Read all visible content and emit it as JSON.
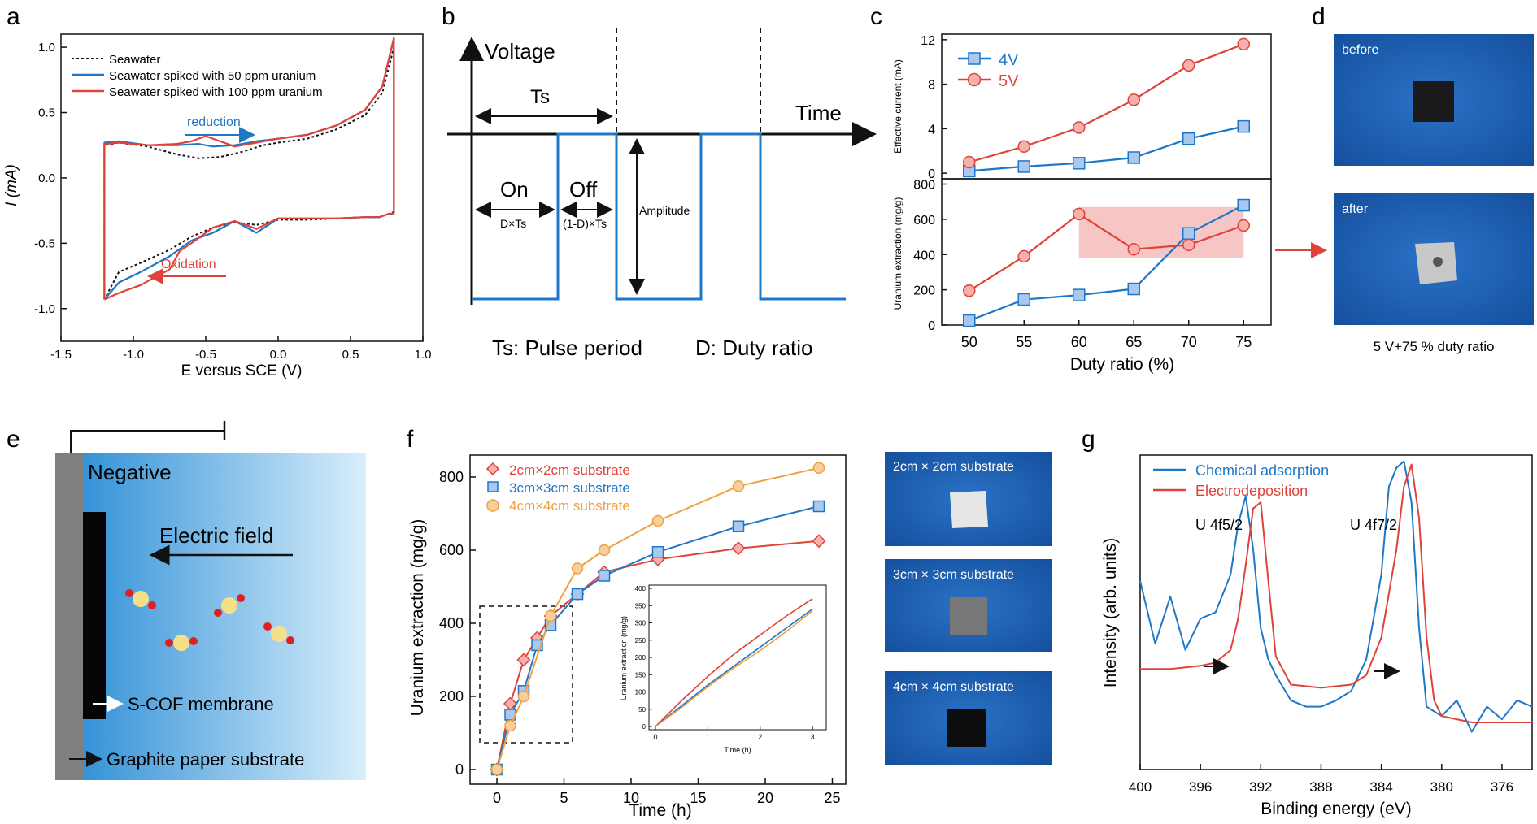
{
  "panel_letters": {
    "a": "a",
    "b": "b",
    "c": "c",
    "d": "d",
    "e": "e",
    "f": "f",
    "g": "g"
  },
  "colors": {
    "blue": "#1f77c8",
    "red": "#e0423a",
    "orange": "#f0a040",
    "pink": "#f3b3b0",
    "photo_blue": "#1f5fb0",
    "black": "#111111"
  },
  "panel_a": {
    "xlabel": "E versus SCE (V)",
    "ylabel": "I (mA)",
    "xticks": [
      "-1.5",
      "-1.0",
      "-0.5",
      "0.0",
      "0.5",
      "1.0"
    ],
    "yticks": [
      "1.0",
      "0.5",
      "0.0",
      "-0.5",
      "-1.0"
    ],
    "legend": [
      "Seawater",
      "Seawater spiked with 50 ppm uranium",
      "Seawater spiked with 100 ppm uranium"
    ],
    "annot_reduction": "reduction",
    "annot_oxidation": "Oxidation"
  },
  "panel_b": {
    "voltage": "Voltage",
    "time": "Time",
    "ts": "Ts",
    "on": "On",
    "off": "Off",
    "dts": "D×Ts",
    "one_minus_dts": "(1-D)×Ts",
    "amplitude": "Amplitude",
    "ts_caption": "Ts: Pulse period",
    "d_caption": "D: Duty ratio"
  },
  "panel_c": {
    "xlabel": "Duty ratio (%)",
    "top_ylabel": "Effective current (mA)",
    "bottom_ylabel": "Uranium extraction (mg/g)",
    "xticks": [
      "50",
      "55",
      "60",
      "65",
      "70",
      "75"
    ],
    "top_yticks": [
      "0",
      "4",
      "8",
      "12"
    ],
    "bottom_yticks": [
      "0",
      "200",
      "400",
      "600",
      "800"
    ],
    "legend": [
      "4V",
      "5V"
    ]
  },
  "panel_d": {
    "before": "before",
    "after": "after",
    "caption": "5 V+75 % duty ratio"
  },
  "panel_e": {
    "negative": "Negative",
    "field": "Electric field",
    "membrane": "S-COF membrane",
    "substrate": "Graphite paper substrate"
  },
  "panel_f": {
    "xlabel": "Time (h)",
    "ylabel": "Uranium extraction (mg/g)",
    "xticks": [
      "0",
      "5",
      "10",
      "15",
      "20",
      "25"
    ],
    "yticks": [
      "0",
      "200",
      "400",
      "600",
      "800"
    ],
    "legend": [
      "2cm×2cm substrate",
      "3cm×3cm substrate",
      "4cm×4cm substrate"
    ],
    "inset_xlabel": "Time (h)",
    "inset_ylabel": "Uranium extraction (mg/g)",
    "inset_xticks": [
      "0",
      "1",
      "2",
      "3"
    ],
    "inset_yticks": [
      "0",
      "50",
      "100",
      "150",
      "200",
      "250",
      "300",
      "350",
      "400"
    ],
    "photos": [
      "2cm × 2cm substrate",
      "3cm × 3cm substrate",
      "4cm × 4cm substrate"
    ]
  },
  "panel_g": {
    "xlabel": "Binding energy (eV)",
    "ylabel": "Intensity (arb. units)",
    "xticks": [
      "400",
      "396",
      "392",
      "388",
      "384",
      "380",
      "376"
    ],
    "legend": [
      "Chemical adsorption",
      "Electrodeposition"
    ],
    "peak1": "U 4f5/2",
    "peak2": "U 4f7/2"
  },
  "chart_data": [
    {
      "panel": "a",
      "type": "line",
      "xlabel": "E versus SCE (V)",
      "ylabel": "I (mA)",
      "xlim": [
        -1.5,
        1.0
      ],
      "ylim": [
        -1.25,
        1.1
      ],
      "series": [
        {
          "name": "Seawater",
          "style": "dotted",
          "color": "#111111",
          "x": [
            -1.2,
            -1.2,
            -1.1,
            -0.9,
            -0.7,
            -0.55,
            -0.4,
            -0.25,
            -0.1,
            0.0,
            0.2,
            0.4,
            0.6,
            0.72,
            0.8,
            0.8,
            0.75,
            0.7,
            0.6,
            0.4,
            0.2,
            0.0,
            -0.15,
            -0.3,
            -0.45,
            -0.6,
            -0.75,
            -0.95,
            -1.1,
            -1.2
          ],
          "y": [
            -0.93,
            0.25,
            0.27,
            0.24,
            0.18,
            0.15,
            0.16,
            0.2,
            0.25,
            0.27,
            0.3,
            0.37,
            0.48,
            0.65,
            1.0,
            -0.26,
            -0.28,
            -0.3,
            -0.3,
            -0.31,
            -0.32,
            -0.32,
            -0.36,
            -0.34,
            -0.38,
            -0.45,
            -0.55,
            -0.65,
            -0.72,
            -0.93
          ]
        },
        {
          "name": "Seawater spiked with 50 ppm uranium",
          "color": "#1f77c8",
          "x": [
            -1.2,
            -1.2,
            -1.1,
            -0.9,
            -0.7,
            -0.55,
            -0.45,
            -0.3,
            -0.15,
            0.0,
            0.2,
            0.4,
            0.6,
            0.72,
            0.8,
            0.8,
            0.75,
            0.7,
            0.6,
            0.4,
            0.2,
            0.0,
            -0.15,
            -0.3,
            -0.45,
            -0.6,
            -0.75,
            -0.95,
            -1.1,
            -1.2
          ],
          "y": [
            -0.93,
            0.27,
            0.28,
            0.25,
            0.25,
            0.26,
            0.24,
            0.25,
            0.28,
            0.3,
            0.33,
            0.4,
            0.52,
            0.7,
            1.07,
            -0.27,
            -0.28,
            -0.3,
            -0.3,
            -0.31,
            -0.31,
            -0.31,
            -0.42,
            -0.33,
            -0.42,
            -0.48,
            -0.6,
            -0.72,
            -0.8,
            -0.93
          ]
        },
        {
          "name": "Seawater spiked with 100 ppm uranium",
          "color": "#e0423a",
          "x": [
            -1.2,
            -1.2,
            -1.1,
            -0.9,
            -0.7,
            -0.6,
            -0.5,
            -0.4,
            -0.3,
            -0.15,
            0.0,
            0.2,
            0.4,
            0.6,
            0.72,
            0.8,
            0.8,
            0.75,
            0.7,
            0.6,
            0.4,
            0.2,
            0.0,
            -0.15,
            -0.3,
            -0.45,
            -0.6,
            -0.68,
            -0.75,
            -0.95,
            -1.1,
            -1.2
          ],
          "y": [
            -0.93,
            0.26,
            0.27,
            0.25,
            0.26,
            0.28,
            0.32,
            0.28,
            0.24,
            0.27,
            0.3,
            0.33,
            0.4,
            0.52,
            0.7,
            1.07,
            -0.27,
            -0.28,
            -0.3,
            -0.3,
            -0.31,
            -0.31,
            -0.31,
            -0.39,
            -0.33,
            -0.38,
            -0.5,
            -0.56,
            -0.7,
            -0.82,
            -0.88,
            -0.93
          ]
        }
      ]
    },
    {
      "panel": "c-top",
      "type": "line",
      "xlabel": "Duty ratio (%)",
      "ylabel": "Effective current (mA)",
      "x": [
        50,
        55,
        60,
        65,
        70,
        75
      ],
      "xlim": [
        47.5,
        77.5
      ],
      "ylim": [
        -0.5,
        12.5
      ],
      "series": [
        {
          "name": "4V",
          "color": "#1f77c8",
          "marker": "square",
          "values": [
            0.2,
            0.6,
            0.9,
            1.4,
            3.1,
            4.2
          ]
        },
        {
          "name": "5V",
          "color": "#e0423a",
          "marker": "circle",
          "values": [
            1.0,
            2.4,
            4.1,
            6.6,
            9.7,
            11.6
          ]
        }
      ]
    },
    {
      "panel": "c-bottom",
      "type": "line",
      "xlabel": "Duty ratio (%)",
      "ylabel": "Uranium extraction (mg/g)",
      "x": [
        50,
        55,
        60,
        65,
        70,
        75
      ],
      "xlim": [
        47.5,
        77.5
      ],
      "ylim": [
        0,
        830
      ],
      "series": [
        {
          "name": "4V",
          "color": "#1f77c8",
          "marker": "square",
          "values": [
            25,
            145,
            170,
            205,
            520,
            680
          ]
        },
        {
          "name": "5V",
          "color": "#e0423a",
          "marker": "circle",
          "values": [
            195,
            390,
            630,
            430,
            455,
            565
          ]
        }
      ],
      "highlight": {
        "x": [
          60,
          75
        ],
        "y": [
          380,
          670
        ]
      }
    },
    {
      "panel": "f",
      "type": "line",
      "xlabel": "Time (h)",
      "ylabel": "Uranium extraction (mg/g)",
      "xlim": [
        -2,
        26
      ],
      "ylim": [
        -40,
        860
      ],
      "series": [
        {
          "name": "2cm×2cm substrate",
          "color": "#e0423a",
          "marker": "diamond",
          "x": [
            0,
            1,
            2,
            3,
            4,
            6,
            8,
            12,
            18,
            24
          ],
          "values": [
            0,
            180,
            300,
            360,
            420,
            480,
            540,
            575,
            605,
            625
          ]
        },
        {
          "name": "3cm×3cm substrate",
          "color": "#1f77c8",
          "marker": "square",
          "x": [
            0,
            1,
            2,
            3,
            4,
            6,
            8,
            12,
            18,
            24
          ],
          "values": [
            0,
            150,
            215,
            340,
            395,
            480,
            530,
            595,
            665,
            720
          ]
        },
        {
          "name": "4cm×4cm substrate",
          "color": "#f0a040",
          "marker": "circle",
          "x": [
            0,
            1,
            2,
            4,
            6,
            8,
            12,
            18,
            24
          ],
          "values": [
            0,
            120,
            200,
            420,
            550,
            600,
            680,
            775,
            825
          ]
        }
      ]
    },
    {
      "panel": "f-inset",
      "type": "line",
      "xlabel": "Time (h)",
      "ylabel": "Uranium extraction (mg/g)",
      "xlim": [
        0,
        3.2
      ],
      "ylim": [
        0,
        400
      ],
      "series": [
        {
          "color": "#e0423a",
          "x": [
            0,
            0.5,
            1,
            1.5,
            2,
            2.5,
            3
          ],
          "values": [
            0,
            75,
            145,
            210,
            265,
            320,
            370
          ]
        },
        {
          "color": "#1f77c8",
          "x": [
            0,
            0.5,
            1,
            1.5,
            2,
            2.5,
            3
          ],
          "values": [
            0,
            60,
            120,
            175,
            230,
            285,
            340
          ]
        },
        {
          "color": "#f0a040",
          "x": [
            0,
            0.5,
            1,
            1.5,
            2,
            2.5,
            3
          ],
          "values": [
            0,
            55,
            115,
            170,
            220,
            275,
            335
          ]
        }
      ]
    },
    {
      "panel": "g",
      "type": "line",
      "xlabel": "Binding energy (eV)",
      "ylabel": "Intensity (arb. units)",
      "xlim": [
        400,
        374
      ],
      "ylim": [
        0,
        1
      ],
      "series": [
        {
          "name": "Chemical adsorption",
          "color": "#1f77c8",
          "x": [
            400,
            399,
            398,
            397,
            396,
            395,
            394,
            393.5,
            393,
            392.5,
            392,
            391.5,
            391,
            390,
            389,
            388,
            387,
            386,
            385,
            384,
            383.5,
            383,
            382.5,
            382,
            381.5,
            381,
            380,
            379,
            378,
            377,
            376,
            375,
            374
          ],
          "values": [
            0.6,
            0.4,
            0.55,
            0.38,
            0.48,
            0.5,
            0.62,
            0.78,
            0.87,
            0.7,
            0.45,
            0.35,
            0.3,
            0.22,
            0.2,
            0.2,
            0.22,
            0.25,
            0.35,
            0.62,
            0.9,
            0.96,
            0.98,
            0.85,
            0.45,
            0.2,
            0.17,
            0.22,
            0.12,
            0.2,
            0.16,
            0.22,
            0.2
          ]
        },
        {
          "name": "Electrodeposition",
          "color": "#e0423a",
          "x": [
            400,
            398,
            396,
            395,
            394,
            393.5,
            393,
            392.5,
            392,
            391.5,
            391,
            390,
            388,
            386,
            385,
            384,
            383,
            382.5,
            382,
            381.5,
            381,
            380.5,
            380,
            379,
            378,
            376,
            374
          ],
          "values": [
            0.32,
            0.32,
            0.33,
            0.34,
            0.38,
            0.48,
            0.65,
            0.83,
            0.85,
            0.6,
            0.36,
            0.27,
            0.26,
            0.27,
            0.3,
            0.42,
            0.7,
            0.9,
            0.97,
            0.8,
            0.42,
            0.22,
            0.17,
            0.16,
            0.15,
            0.15,
            0.15
          ]
        }
      ]
    }
  ]
}
